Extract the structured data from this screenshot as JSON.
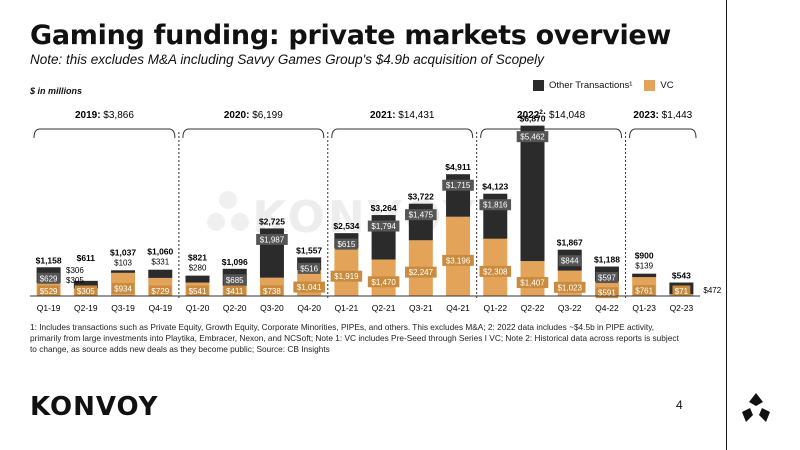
{
  "page": {
    "title": "Gaming funding: private markets overview",
    "subtitle": "Note: this excludes M&A including Savvy Games Group's $4.9b acquisition of Scopely",
    "unit_label": "$ in millions",
    "footnote": "1: Includes transactions such as Private Equity, Growth Equity, Corporate Minorities, PIPEs, and others. This excludes M&A; 2: 2022 data includes ~$4.5b in PIPE activity, primarily from large investments into Playtika, Embracer, Nexon, and NCSoft; Note 1: VC includes Pre-Seed through Series I VC; Note 2: Historical data across reports is subject to change, as source adds new deals as they become public; Source: CB Insights",
    "logo": "KONVOY",
    "watermark": "KONVOY",
    "page_number": "4"
  },
  "colors": {
    "other": "#2b2b2b",
    "vc": "#e3a45a",
    "axis": "#333333"
  },
  "chart_data": {
    "type": "bar",
    "stacked": true,
    "ylabel": "$ in millions",
    "categories": [
      "Q1-19",
      "Q2-19",
      "Q3-19",
      "Q4-19",
      "Q1-20",
      "Q2-20",
      "Q3-20",
      "Q4-20",
      "Q1-21",
      "Q2-21",
      "Q3-21",
      "Q4-21",
      "Q1-22",
      "Q2-22",
      "Q3-22",
      "Q4-22",
      "Q1-23",
      "Q2-23"
    ],
    "series": [
      {
        "name": "VC",
        "color": "#e3a45a",
        "values": [
          529,
          305,
          934,
          729,
          541,
          411,
          738,
          1041,
          1919,
          1470,
          2247,
          3196,
          2308,
          1407,
          1023,
          591,
          761,
          71
        ],
        "labels": [
          "$529",
          "$305",
          "$934",
          "$729",
          "$541",
          "$411",
          "$738",
          "$1,041",
          "$1,919",
          "$1,470",
          "$2,247",
          "$3,196",
          "$2,308",
          "$1,407",
          "$1,023",
          "$591",
          "$761",
          "$71"
        ]
      },
      {
        "name": "Other Transactions¹",
        "color": "#2b2b2b",
        "values": [
          629,
          306,
          103,
          331,
          280,
          685,
          1987,
          516,
          615,
          1794,
          1475,
          1715,
          1816,
          5462,
          844,
          597,
          139,
          472
        ],
        "labels": [
          "$629",
          "$306",
          "$103",
          "$331",
          "$280",
          "$685",
          "$1,987",
          "$516",
          "$615",
          "$1,794",
          "$1,475",
          "$1,715",
          "$1,816",
          "$5,462",
          "$844",
          "$597",
          "$139",
          "$472"
        ]
      }
    ],
    "totals": [
      "$1,158",
      "$611",
      "$1,037",
      "$1,060",
      "$821",
      "$1,096",
      "$2,725",
      "$1,557",
      "$2,534",
      "$3,264",
      "$3,722",
      "$4,911",
      "$4,123",
      "$6,870",
      "$1,867",
      "$1,188",
      "$900",
      "$543"
    ],
    "years": [
      {
        "label": "2019:",
        "total": "$3,866",
        "start": 0,
        "end": 3
      },
      {
        "label": "2020:",
        "total": "$6,199",
        "start": 4,
        "end": 7
      },
      {
        "label": "2021:",
        "total": "$14,431",
        "start": 8,
        "end": 11
      },
      {
        "label": "2022",
        "sup": "2",
        "suffix": ":",
        "total": "$14,048",
        "start": 12,
        "end": 15
      },
      {
        "label": "2023:",
        "total": "$1,443",
        "start": 16,
        "end": 17
      }
    ],
    "ylim": [
      0,
      7000
    ],
    "legend": "top-right"
  }
}
